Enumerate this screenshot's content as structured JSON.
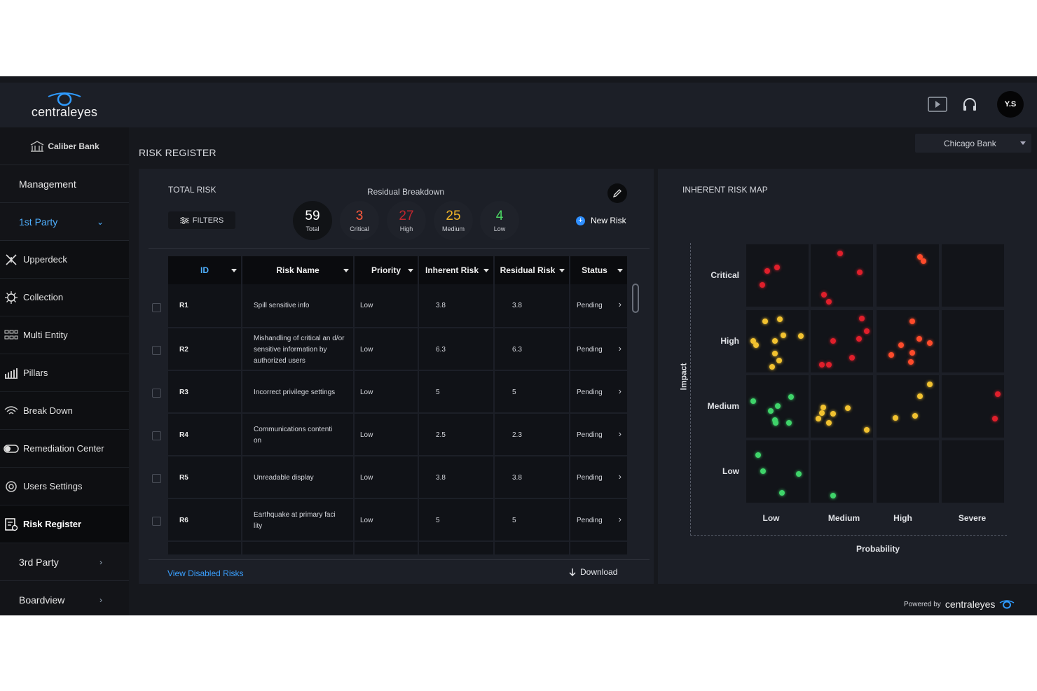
{
  "brand": {
    "logo_text": "centraleyes",
    "org_name": "Caliber Bank"
  },
  "sidebar": {
    "items": [
      {
        "label": "Management"
      },
      {
        "label": "1st Party"
      },
      {
        "label": "3rd Party"
      },
      {
        "label": "Boardview"
      }
    ],
    "sub_items": [
      {
        "label": "Upperdeck",
        "icon": "upperdeck-icon"
      },
      {
        "label": "Collection",
        "icon": "collection-icon"
      },
      {
        "label": "Multi Entity",
        "icon": "multi-entity-icon"
      },
      {
        "label": "Pillars",
        "icon": "pillars-icon"
      },
      {
        "label": "Break Down",
        "icon": "break-down-icon"
      },
      {
        "label": "Remediation Center",
        "icon": "remediation-icon"
      },
      {
        "label": "Users Settings",
        "icon": "users-settings-icon"
      },
      {
        "label": "Risk Register",
        "icon": "risk-register-icon"
      }
    ]
  },
  "header": {
    "avatar_initials": "Y.S",
    "bank_select": "Chicago Bank"
  },
  "page": {
    "title": "RISK REGISTER"
  },
  "summary": {
    "total_label": "TOTAL RISK",
    "filters_label": "FILTERS",
    "breakdown_title": "Residual Breakdown",
    "stats": [
      {
        "value": "59",
        "label": "Total",
        "color": "#ffffff"
      },
      {
        "value": "3",
        "label": "Critical",
        "color": "#ff5a3c"
      },
      {
        "value": "27",
        "label": "High",
        "color": "#c2262e"
      },
      {
        "value": "25",
        "label": "Medium",
        "color": "#f0b429"
      },
      {
        "value": "4",
        "label": "Low",
        "color": "#4cd964"
      }
    ],
    "new_risk_label": "New Risk"
  },
  "table": {
    "columns": [
      "ID",
      "Risk Name",
      "Priority",
      "Inherent Risk",
      "Residual Risk",
      "Status"
    ],
    "rows": [
      {
        "id": "R1",
        "name": "Spill sensitive info",
        "priority": "Low",
        "inherent": "3.8",
        "residual": "3.8",
        "status": "Pending"
      },
      {
        "id": "R2",
        "name": "Mishandling of critical an d/or sensitive information by authorized users",
        "priority": "Low",
        "inherent": "6.3",
        "residual": "6.3",
        "status": "Pending"
      },
      {
        "id": "R3",
        "name": "Incorrect privilege settings",
        "priority": "Low",
        "inherent": "5",
        "residual": "5",
        "status": "Pending"
      },
      {
        "id": "R4",
        "name": "Communications contenti on",
        "priority": "Low",
        "inherent": "2.5",
        "residual": "2.3",
        "status": "Pending"
      },
      {
        "id": "R5",
        "name": "Unreadable display",
        "priority": "Low",
        "inherent": "3.8",
        "residual": "3.8",
        "status": "Pending"
      },
      {
        "id": "R6",
        "name": "Earthquake at primary faci lity",
        "priority": "Low",
        "inherent": "5",
        "residual": "5",
        "status": "Pending"
      }
    ],
    "view_disabled_label": "View Disabled Risks",
    "download_label": "Download"
  },
  "risk_map": {
    "title": "INHERENT RISK MAP",
    "impact_levels": [
      "Critical",
      "High",
      "Medium",
      "Low"
    ],
    "probability_levels": [
      "Low",
      "Medium",
      "High",
      "Severe"
    ],
    "y_axis_title": "Impact",
    "x_axis_title": "Probability",
    "colors": {
      "red": "#e01f2b",
      "orange": "#ff4b2b",
      "yellow": "#f2c230",
      "green": "#3fd46a"
    }
  },
  "footer": {
    "powered_by": "Powered by",
    "brand": "centraleyes"
  }
}
